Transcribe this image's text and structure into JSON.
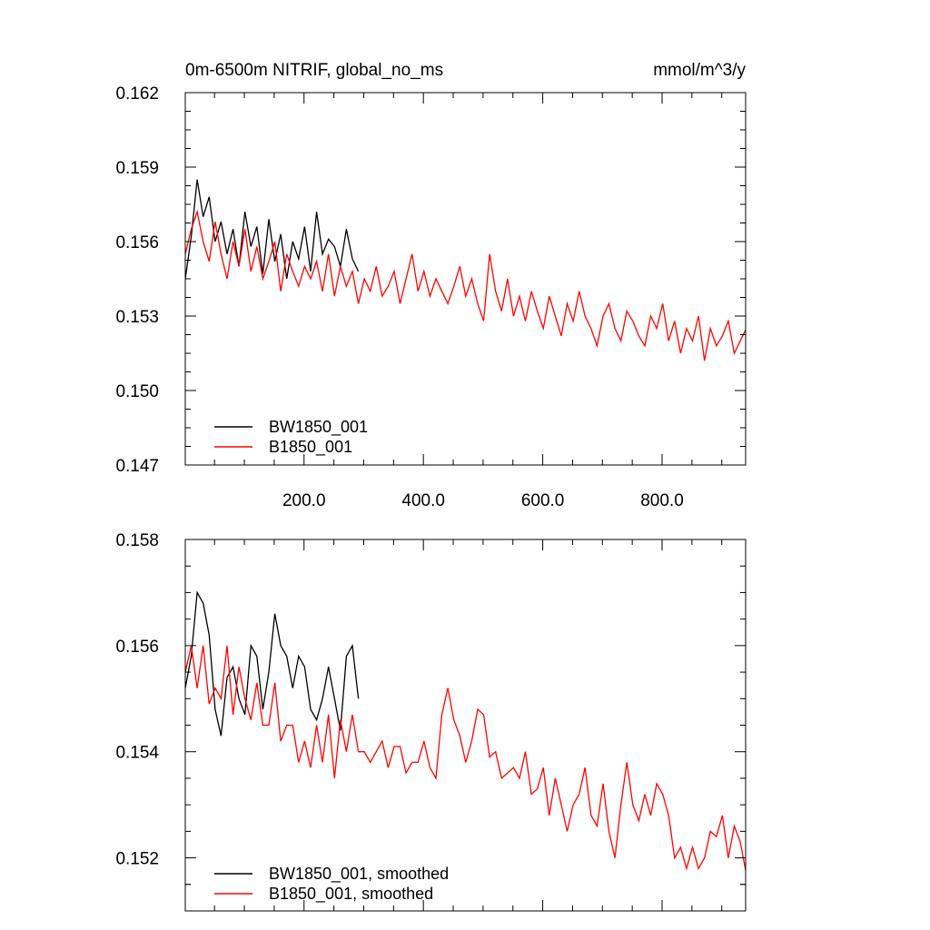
{
  "colors": {
    "bw": "#000000",
    "b": "#ff0000"
  },
  "chart_data": [
    {
      "type": "line",
      "title": "0m-6500m NITRIF, global_no_ms",
      "units": "mmol/m^3/y",
      "xlim": [
        1,
        940
      ],
      "ylim": [
        0.147,
        0.162
      ],
      "xticks": [
        200,
        400,
        600,
        800
      ],
      "xtick_labels": [
        "200.0",
        "400.0",
        "600.0",
        "800.0"
      ],
      "yticks": [
        0.147,
        0.15,
        0.153,
        0.156,
        0.159,
        0.162
      ],
      "ytick_labels": [
        "0.147",
        "0.150",
        "0.153",
        "0.156",
        "0.159",
        "0.162"
      ],
      "legend_position": "bottom-left",
      "series": [
        {
          "name": "BW1850_001",
          "color": "#000000",
          "x_start": 1,
          "x_step": 10,
          "values": [
            0.1545,
            0.1562,
            0.1585,
            0.157,
            0.1578,
            0.156,
            0.1568,
            0.1555,
            0.1565,
            0.155,
            0.1572,
            0.1558,
            0.1566,
            0.1547,
            0.1569,
            0.1552,
            0.1563,
            0.1545,
            0.156,
            0.1553,
            0.1566,
            0.1548,
            0.1572,
            0.1555,
            0.1561,
            0.1558,
            0.155,
            0.1565,
            0.1553,
            0.1548
          ]
        },
        {
          "name": "B1850_001",
          "color": "#ff0000",
          "x_start": 1,
          "x_step": 10,
          "values": [
            0.1555,
            0.1565,
            0.1572,
            0.156,
            0.1552,
            0.1568,
            0.1555,
            0.1545,
            0.156,
            0.155,
            0.1565,
            0.1548,
            0.1558,
            0.1545,
            0.1552,
            0.156,
            0.154,
            0.1555,
            0.1548,
            0.1542,
            0.155,
            0.1545,
            0.1552,
            0.154,
            0.1555,
            0.1538,
            0.155,
            0.1542,
            0.1548,
            0.1535,
            0.1545,
            0.154,
            0.155,
            0.1538,
            0.1542,
            0.1548,
            0.1535,
            0.1545,
            0.1555,
            0.154,
            0.1548,
            0.1538,
            0.1545,
            0.154,
            0.1535,
            0.1542,
            0.155,
            0.1538,
            0.1545,
            0.1535,
            0.1528,
            0.1555,
            0.154,
            0.1532,
            0.1545,
            0.153,
            0.1538,
            0.1528,
            0.154,
            0.1532,
            0.1525,
            0.1538,
            0.153,
            0.1522,
            0.1535,
            0.1528,
            0.154,
            0.153,
            0.1525,
            0.1518,
            0.153,
            0.1535,
            0.1525,
            0.152,
            0.1532,
            0.1528,
            0.1522,
            0.1518,
            0.153,
            0.1525,
            0.1535,
            0.152,
            0.1528,
            0.1515,
            0.1525,
            0.152,
            0.153,
            0.1512,
            0.1525,
            0.1518,
            0.1522,
            0.1528,
            0.1515,
            0.152,
            0.1525
          ]
        }
      ]
    },
    {
      "type": "line",
      "xlim": [
        1,
        940
      ],
      "ylim": [
        0.151,
        0.158
      ],
      "xticks": [
        200,
        400,
        600,
        800
      ],
      "yticks": [
        0.152,
        0.154,
        0.156,
        0.158
      ],
      "ytick_labels": [
        "0.152",
        "0.154",
        "0.156",
        "0.158"
      ],
      "legend_position": "bottom-left",
      "series": [
        {
          "name": "BW1850_001, smoothed",
          "color": "#000000",
          "x_start": 1,
          "x_step": 10,
          "values": [
            0.1552,
            0.1558,
            0.157,
            0.1568,
            0.1562,
            0.1548,
            0.1543,
            0.1554,
            0.1556,
            0.155,
            0.1547,
            0.156,
            0.1558,
            0.1548,
            0.1555,
            0.1566,
            0.156,
            0.1558,
            0.1552,
            0.1558,
            0.1556,
            0.1548,
            0.1546,
            0.155,
            0.1556,
            0.155,
            0.1544,
            0.1558,
            0.156,
            0.155
          ]
        },
        {
          "name": "B1850_001, smoothed",
          "color": "#ff0000",
          "x_start": 1,
          "x_step": 10,
          "values": [
            0.1555,
            0.156,
            0.1552,
            0.156,
            0.1549,
            0.1552,
            0.155,
            0.156,
            0.1547,
            0.1556,
            0.155,
            0.1546,
            0.1553,
            0.1545,
            0.1545,
            0.1553,
            0.1542,
            0.1545,
            0.1545,
            0.1538,
            0.1542,
            0.1537,
            0.1545,
            0.1538,
            0.1547,
            0.1535,
            0.1546,
            0.154,
            0.1547,
            0.154,
            0.154,
            0.1538,
            0.154,
            0.1542,
            0.1537,
            0.1541,
            0.1541,
            0.1536,
            0.1538,
            0.1538,
            0.1542,
            0.1537,
            0.1535,
            0.1547,
            0.1552,
            0.1546,
            0.1543,
            0.1538,
            0.1542,
            0.1548,
            0.1547,
            0.1539,
            0.154,
            0.1535,
            0.1536,
            0.1537,
            0.1535,
            0.154,
            0.1532,
            0.1533,
            0.1537,
            0.1528,
            0.1535,
            0.153,
            0.1525,
            0.153,
            0.1532,
            0.1537,
            0.1528,
            0.1526,
            0.1534,
            0.1525,
            0.152,
            0.153,
            0.1538,
            0.153,
            0.1527,
            0.1532,
            0.1528,
            0.1534,
            0.1532,
            0.1528,
            0.152,
            0.1522,
            0.1518,
            0.1522,
            0.1518,
            0.152,
            0.1525,
            0.1524,
            0.1528,
            0.152,
            0.1526,
            0.1523,
            0.1517
          ]
        }
      ]
    }
  ]
}
